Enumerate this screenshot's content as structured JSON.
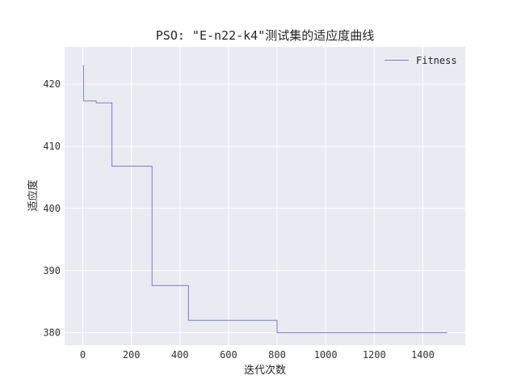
{
  "chart_data": {
    "type": "line",
    "title": "PSO: \"E-n22-k4\"测试集的适应度曲线",
    "xlabel": "迭代次数",
    "ylabel": "适应度",
    "xlim": [
      -75,
      1575
    ],
    "ylim": [
      378,
      426
    ],
    "xticks": [
      0,
      200,
      400,
      600,
      800,
      1000,
      1200,
      1400
    ],
    "yticks": [
      380,
      390,
      400,
      410,
      420
    ],
    "grid": true,
    "legend": "top-right",
    "background": "#eaeaf2",
    "series": [
      {
        "name": "Fitness",
        "color": "#7b79c9",
        "x": [
          0,
          3,
          3,
          55,
          55,
          120,
          120,
          285,
          285,
          435,
          435,
          800,
          800,
          1500
        ],
        "y": [
          423,
          423,
          417.3,
          417.3,
          417.0,
          417.0,
          406.8,
          406.8,
          387.6,
          387.6,
          382.0,
          382.0,
          380.0,
          380.0
        ]
      }
    ]
  }
}
